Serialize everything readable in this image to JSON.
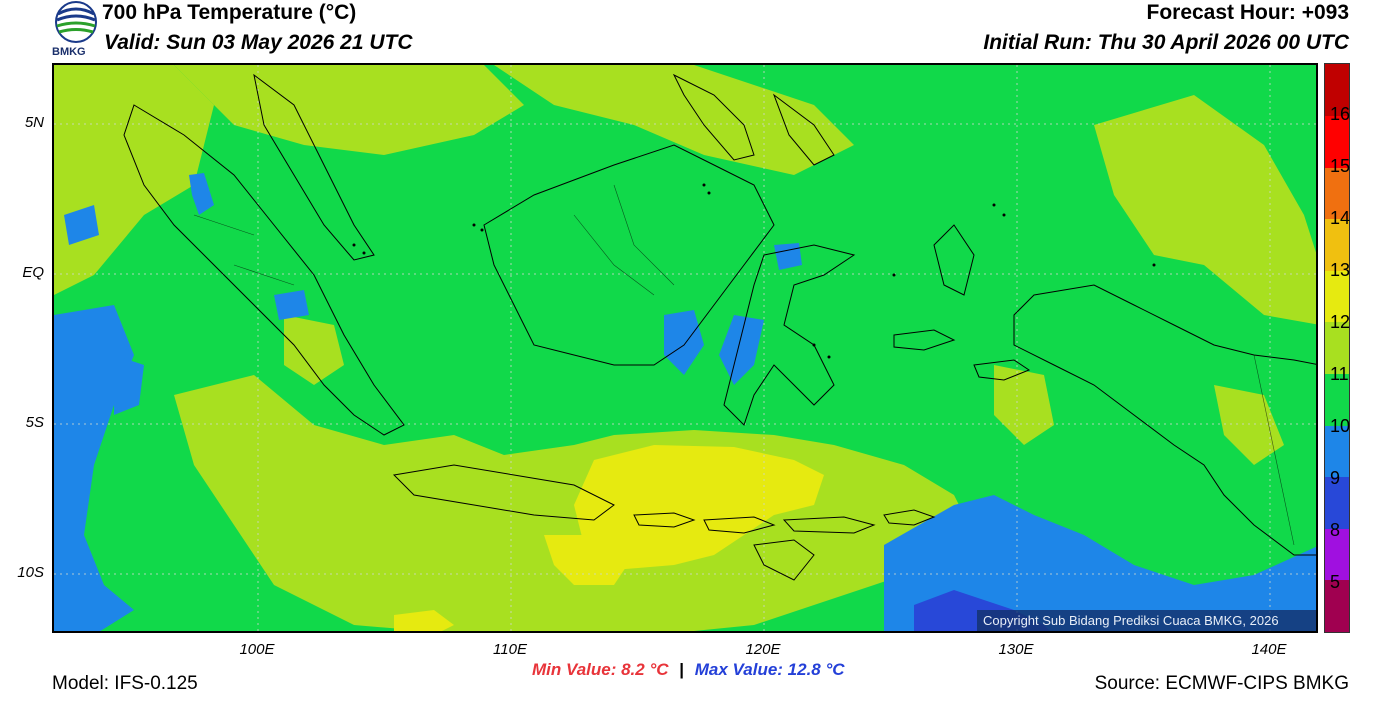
{
  "header": {
    "title": "700 hPa Temperature (°C)",
    "valid": "Valid: Sun 03 May 2026 21 UTC",
    "forecast_hour": "Forecast Hour: +093",
    "initial_run": "Initial Run: Thu 30 April 2026 00 UTC"
  },
  "logo": {
    "text": "BMKG"
  },
  "map": {
    "lat_labels": [
      "5N",
      "EQ",
      "5S",
      "10S"
    ],
    "lon_labels": [
      "100E",
      "110E",
      "120E",
      "130E",
      "140E"
    ],
    "copyright": "Copyright Sub Bidang Prediksi Cuaca BMKG, 2026"
  },
  "colorbar": {
    "labels": [
      "16",
      "15",
      "14",
      "13",
      "12",
      "11",
      "10",
      "9",
      "8",
      "5"
    ],
    "colors": [
      "#c00000",
      "#ff0000",
      "#f07010",
      "#f0c010",
      "#e6ea10",
      "#a8e020",
      "#11d94a",
      "#1e86e8",
      "#2848d8",
      "#a010e0",
      "#a00050"
    ]
  },
  "footer": {
    "model": "Model: IFS-0.125",
    "source": "Source: ECMWF-CIPS BMKG",
    "min_value": "Min Value: 8.2 °C",
    "separator": "|",
    "max_value": "Max Value: 12.8 °C"
  }
}
